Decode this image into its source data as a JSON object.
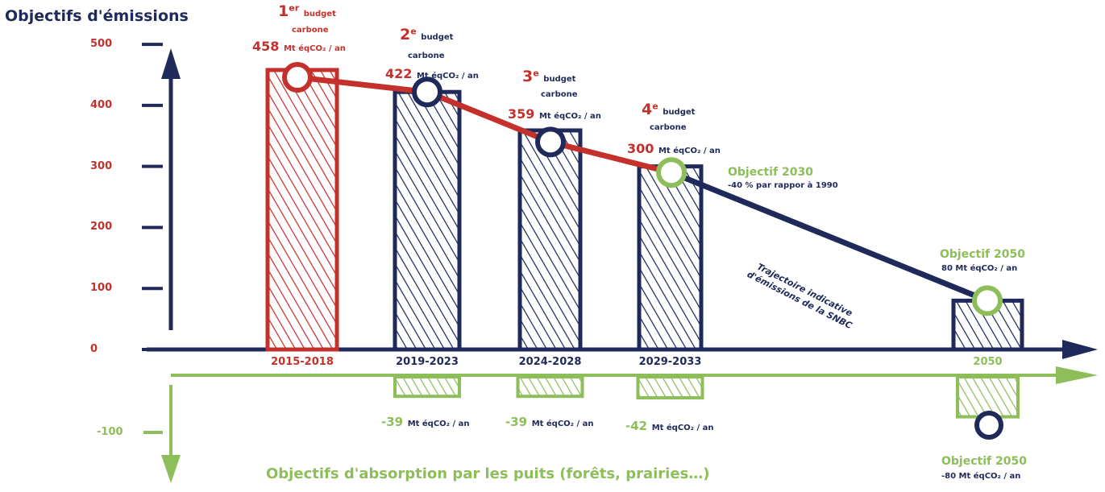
{
  "colors": {
    "navy": "#1f2a5a",
    "red": "#c4302b",
    "green": "#8dbe5a"
  },
  "chart_data": {
    "type": "bar",
    "title": "Objectifs d'émissions",
    "bottom_title": "Objectifs d'absorption par les puits (forêts, prairies…)",
    "categories": [
      "2015-2018",
      "2019-2023",
      "2024-2028",
      "2029-2033",
      "2050"
    ],
    "emissions": [
      458,
      422,
      359,
      300,
      80
    ],
    "absorption": [
      null,
      -39,
      -39,
      -42,
      -80
    ],
    "ylim": [
      -130,
      520
    ],
    "yticks": [
      "500",
      "400",
      "300",
      "200",
      "100",
      "0",
      "-100"
    ],
    "trajectory_label": "Trajectoire indicative d'émissions de la SNBC"
  },
  "budgets": [
    {
      "ord": "1",
      "sup": "er",
      "word": "budget",
      "word2": "carbone",
      "value": "458",
      "unit": "Mt éqCO₂ / an"
    },
    {
      "ord": "2",
      "sup": "e",
      "word": "budget",
      "word2": "carbone",
      "value": "422",
      "unit": "Mt éqCO₂ / an"
    },
    {
      "ord": "3",
      "sup": "e",
      "word": "budget",
      "word2": "carbone",
      "value": "359",
      "unit": "Mt éqCO₂ / an"
    },
    {
      "ord": "4",
      "sup": "e",
      "word": "budget",
      "word2": "carbone",
      "value": "300",
      "unit": "Mt éqCO₂ / an"
    }
  ],
  "objectif_2030": {
    "title": "Objectif 2030",
    "text": "-40 % par rappor à 1990"
  },
  "objectif_2050": {
    "title": "Objectif 2050",
    "text": "80 Mt éqCO₂ / an"
  },
  "objectif_2050_puits": {
    "title": "Objectif 2050",
    "text": "-80 Mt éqCO₂ / an"
  },
  "sinks": [
    {
      "value": "-39",
      "unit": "Mt éqCO₂ / an"
    },
    {
      "value": "-39",
      "unit": "Mt éqCO₂ / an"
    },
    {
      "value": "-42",
      "unit": "Mt éqCO₂ / an"
    }
  ]
}
